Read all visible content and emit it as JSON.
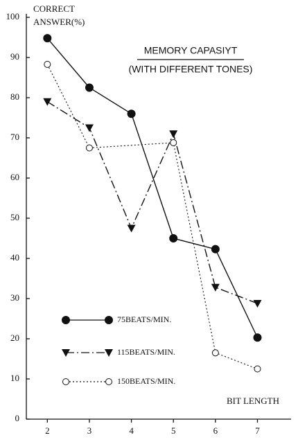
{
  "chart_data": {
    "type": "line",
    "title": "MEMORY CAPASIYT",
    "subtitle": "(WITH DIFFERENT TONES)",
    "y_label_lines": [
      "CORRECT",
      "ANSWER(%)"
    ],
    "x_label": "BIT LENGTH",
    "xlim": [
      1.5,
      7.8
    ],
    "xticks": [
      2,
      3,
      4,
      5,
      6,
      7
    ],
    "ylim": [
      0,
      100
    ],
    "yticks": [
      0,
      10,
      20,
      30,
      40,
      50,
      60,
      70,
      80,
      90,
      100
    ],
    "series": [
      {
        "name": "75BEATS/MIN.",
        "color": "#111111",
        "style": "solid",
        "marker": "filled-circle",
        "x": [
          2,
          3,
          4,
          5,
          6,
          7
        ],
        "values": [
          94.8,
          82.5,
          76,
          45,
          42.3,
          20.3
        ]
      },
      {
        "name": "115BEATS/MIN.",
        "color": "#111111",
        "style": "dashdot",
        "marker": "filled-triangle-down",
        "x": [
          2,
          3,
          4,
          5,
          6,
          7
        ],
        "values": [
          79,
          72.5,
          47.5,
          71,
          32.8,
          28.8
        ]
      },
      {
        "name": "150BEATS/MIN.",
        "color": "#111111",
        "style": "dotted",
        "marker": "open-circle",
        "x": [
          2,
          3,
          5,
          6,
          7
        ],
        "values": [
          88.3,
          67.5,
          68.8,
          16.5,
          12.5
        ]
      }
    ]
  }
}
